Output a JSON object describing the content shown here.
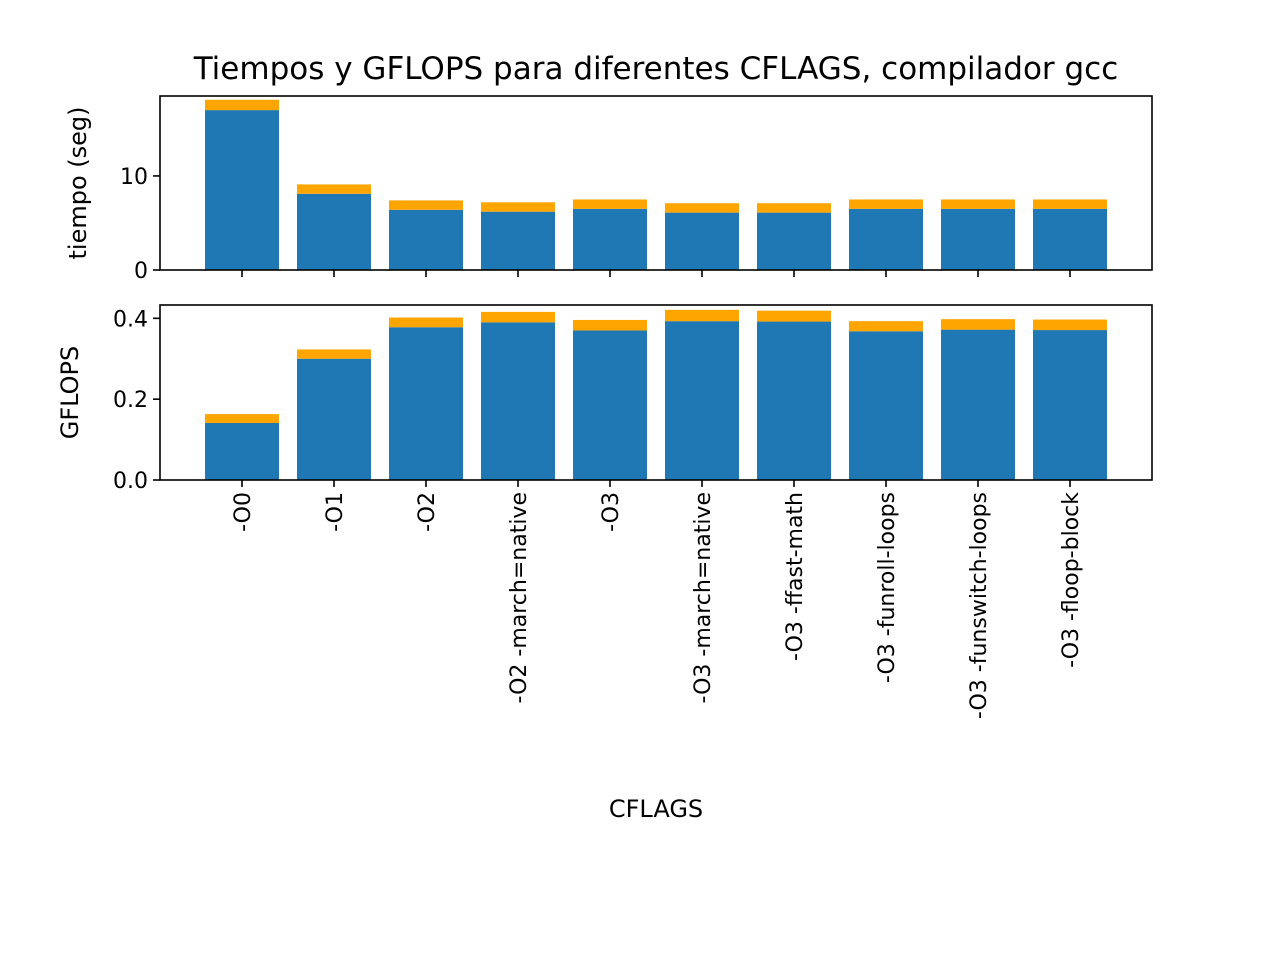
{
  "chart_data": {
    "type": "bar",
    "title": "Tiempos y GFLOPS para diferentes CFLAGS, compilador gcc",
    "xlabel": "CFLAGS",
    "categories": [
      "-O0",
      "-O1",
      "-O2",
      "-O2 -march=native",
      "-O3",
      "-O3 -march=native",
      "-O3 -ffast-math",
      "-O3 -funroll-loops",
      "-O3 -funswitch-loops",
      "-O3 -floop-block"
    ],
    "colors": {
      "base": "#1f77b4",
      "top": "#ffa500"
    },
    "panels": [
      {
        "ylabel": "tiempo (seg)",
        "ylim": [
          0,
          18.5
        ],
        "yticks": [
          0,
          10
        ],
        "ytick_labels": [
          "0",
          "10"
        ],
        "stacked_series": [
          {
            "values": [
              17.0,
              8.1,
              6.4,
              6.2,
              6.5,
              6.1,
              6.1,
              6.5,
              6.5,
              6.5
            ]
          },
          {
            "values": [
              1.1,
              1.0,
              1.0,
              1.0,
              1.0,
              1.0,
              1.0,
              1.0,
              1.0,
              1.0
            ]
          }
        ]
      },
      {
        "ylabel": "GFLOPS",
        "ylim": [
          0,
          0.433
        ],
        "yticks": [
          0.0,
          0.2,
          0.4
        ],
        "ytick_labels": [
          "0.0",
          "0.2",
          "0.4"
        ],
        "stacked_series": [
          {
            "values": [
              0.141,
              0.3,
              0.378,
              0.39,
              0.37,
              0.393,
              0.392,
              0.368,
              0.372,
              0.371
            ]
          },
          {
            "values": [
              0.022,
              0.023,
              0.024,
              0.026,
              0.026,
              0.028,
              0.027,
              0.025,
              0.026,
              0.026
            ]
          }
        ]
      }
    ]
  }
}
